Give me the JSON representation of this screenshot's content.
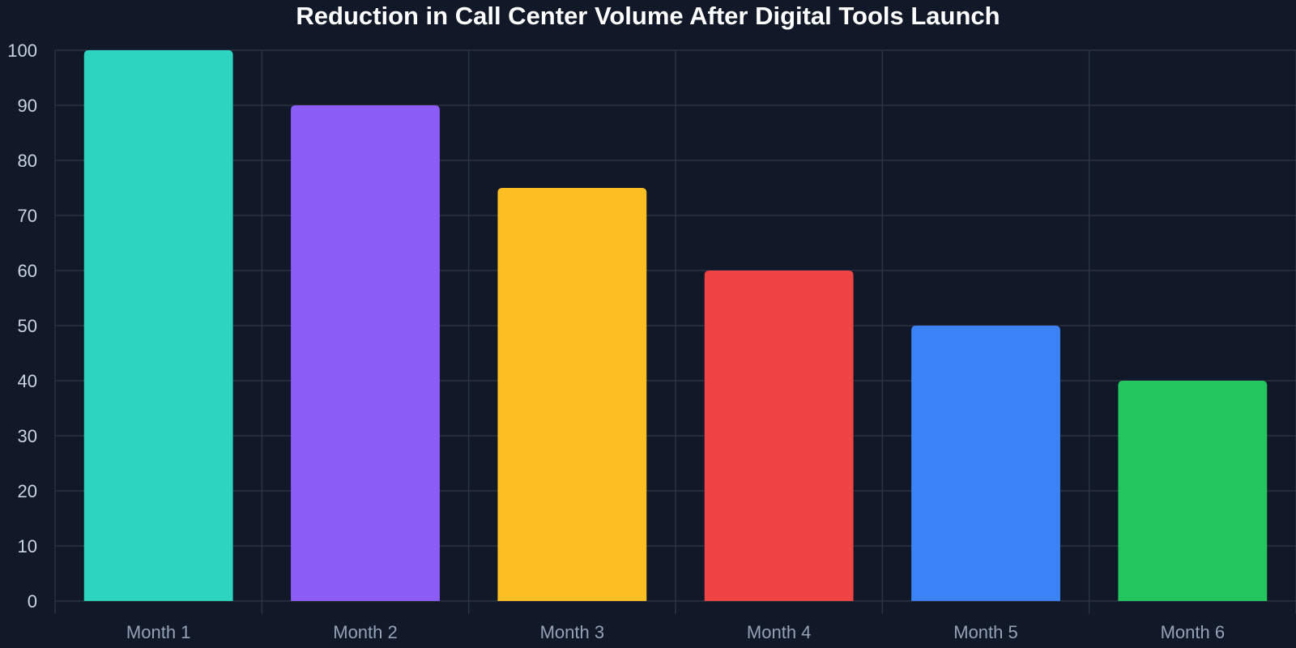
{
  "chart_data": {
    "type": "bar",
    "title": "Reduction in Call Center Volume After Digital Tools Launch",
    "xlabel": "",
    "ylabel": "",
    "categories": [
      "Month 1",
      "Month 2",
      "Month 3",
      "Month 4",
      "Month 5",
      "Month 6"
    ],
    "values": [
      100,
      90,
      75,
      60,
      50,
      40
    ],
    "colors": [
      "#2dd4bf",
      "#8b5cf6",
      "#fbbf24",
      "#ef4444",
      "#3b82f6",
      "#22c55e"
    ],
    "ylim": [
      0,
      100
    ],
    "yticks": [
      0,
      10,
      20,
      30,
      40,
      50,
      60,
      70,
      80,
      90,
      100
    ],
    "grid": true,
    "legend": "none"
  },
  "colors": {
    "background": "#111827",
    "grid": "#2a3342",
    "title": "#ffffff",
    "y_tick_text": "#cbd5e1",
    "x_tick_text": "#94a3b8"
  }
}
